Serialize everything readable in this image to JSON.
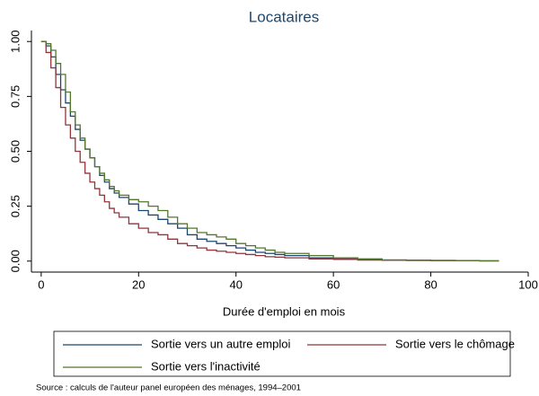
{
  "chart_data": {
    "type": "step",
    "title": "Locataires",
    "x_label": "Durée d'emploi en mois",
    "source": "Source : calculs de l'auteur panel européen des ménages, 1994–2001",
    "x": [
      0,
      1,
      2,
      3,
      4,
      5,
      6,
      7,
      8,
      9,
      10,
      11,
      12,
      13,
      14,
      15,
      16,
      18,
      20,
      22,
      24,
      26,
      28,
      30,
      32,
      34,
      36,
      38,
      40,
      42,
      44,
      46,
      48,
      50,
      55,
      60,
      65,
      70,
      75,
      80,
      85,
      90,
      94
    ],
    "series": [
      {
        "name": "Sortie vers un autre emploi",
        "color": "#1a476f",
        "values": [
          1,
          0.98,
          0.93,
          0.85,
          0.78,
          0.72,
          0.66,
          0.6,
          0.55,
          0.51,
          0.47,
          0.43,
          0.39,
          0.36,
          0.33,
          0.31,
          0.29,
          0.26,
          0.23,
          0.21,
          0.19,
          0.17,
          0.15,
          0.12,
          0.1,
          0.09,
          0.08,
          0.07,
          0.06,
          0.05,
          0.04,
          0.035,
          0.03,
          0.025,
          0.015,
          0.01,
          0.008,
          0.005,
          0.004,
          0.003,
          0.002,
          0.001,
          0.001
        ]
      },
      {
        "name": "Sortie vers le chômage",
        "color": "#90353b",
        "values": [
          1,
          0.95,
          0.88,
          0.79,
          0.7,
          0.62,
          0.56,
          0.5,
          0.45,
          0.4,
          0.36,
          0.33,
          0.3,
          0.27,
          0.24,
          0.22,
          0.2,
          0.17,
          0.15,
          0.13,
          0.12,
          0.1,
          0.08,
          0.07,
          0.06,
          0.05,
          0.045,
          0.04,
          0.035,
          0.03,
          0.025,
          0.02,
          0.018,
          0.015,
          0.01,
          0.008,
          0.005,
          0.004,
          0.003,
          0.002,
          0.002,
          0.001,
          0.001
        ]
      },
      {
        "name": "Sortie vers l'inactivité",
        "color": "#55752f",
        "values": [
          1,
          0.99,
          0.96,
          0.9,
          0.85,
          0.77,
          0.68,
          0.62,
          0.56,
          0.51,
          0.47,
          0.43,
          0.4,
          0.37,
          0.34,
          0.32,
          0.3,
          0.28,
          0.27,
          0.25,
          0.23,
          0.2,
          0.17,
          0.15,
          0.13,
          0.12,
          0.11,
          0.1,
          0.08,
          0.07,
          0.06,
          0.05,
          0.04,
          0.035,
          0.025,
          0.015,
          0.01,
          0.005,
          0.004,
          0.003,
          0.002,
          0.001,
          0.001
        ]
      }
    ],
    "xlim": [
      -2,
      100
    ],
    "xticks": [
      0,
      20,
      40,
      60,
      80,
      100
    ],
    "ylim": [
      -0.05,
      1.05
    ],
    "yticks": [
      {
        "value": 0,
        "label": "0.00"
      },
      {
        "value": 0.25,
        "label": "0.25"
      },
      {
        "value": 0.5,
        "label": "0.50"
      },
      {
        "value": 0.75,
        "label": "0.75"
      },
      {
        "value": 1,
        "label": "1.00"
      }
    ]
  }
}
